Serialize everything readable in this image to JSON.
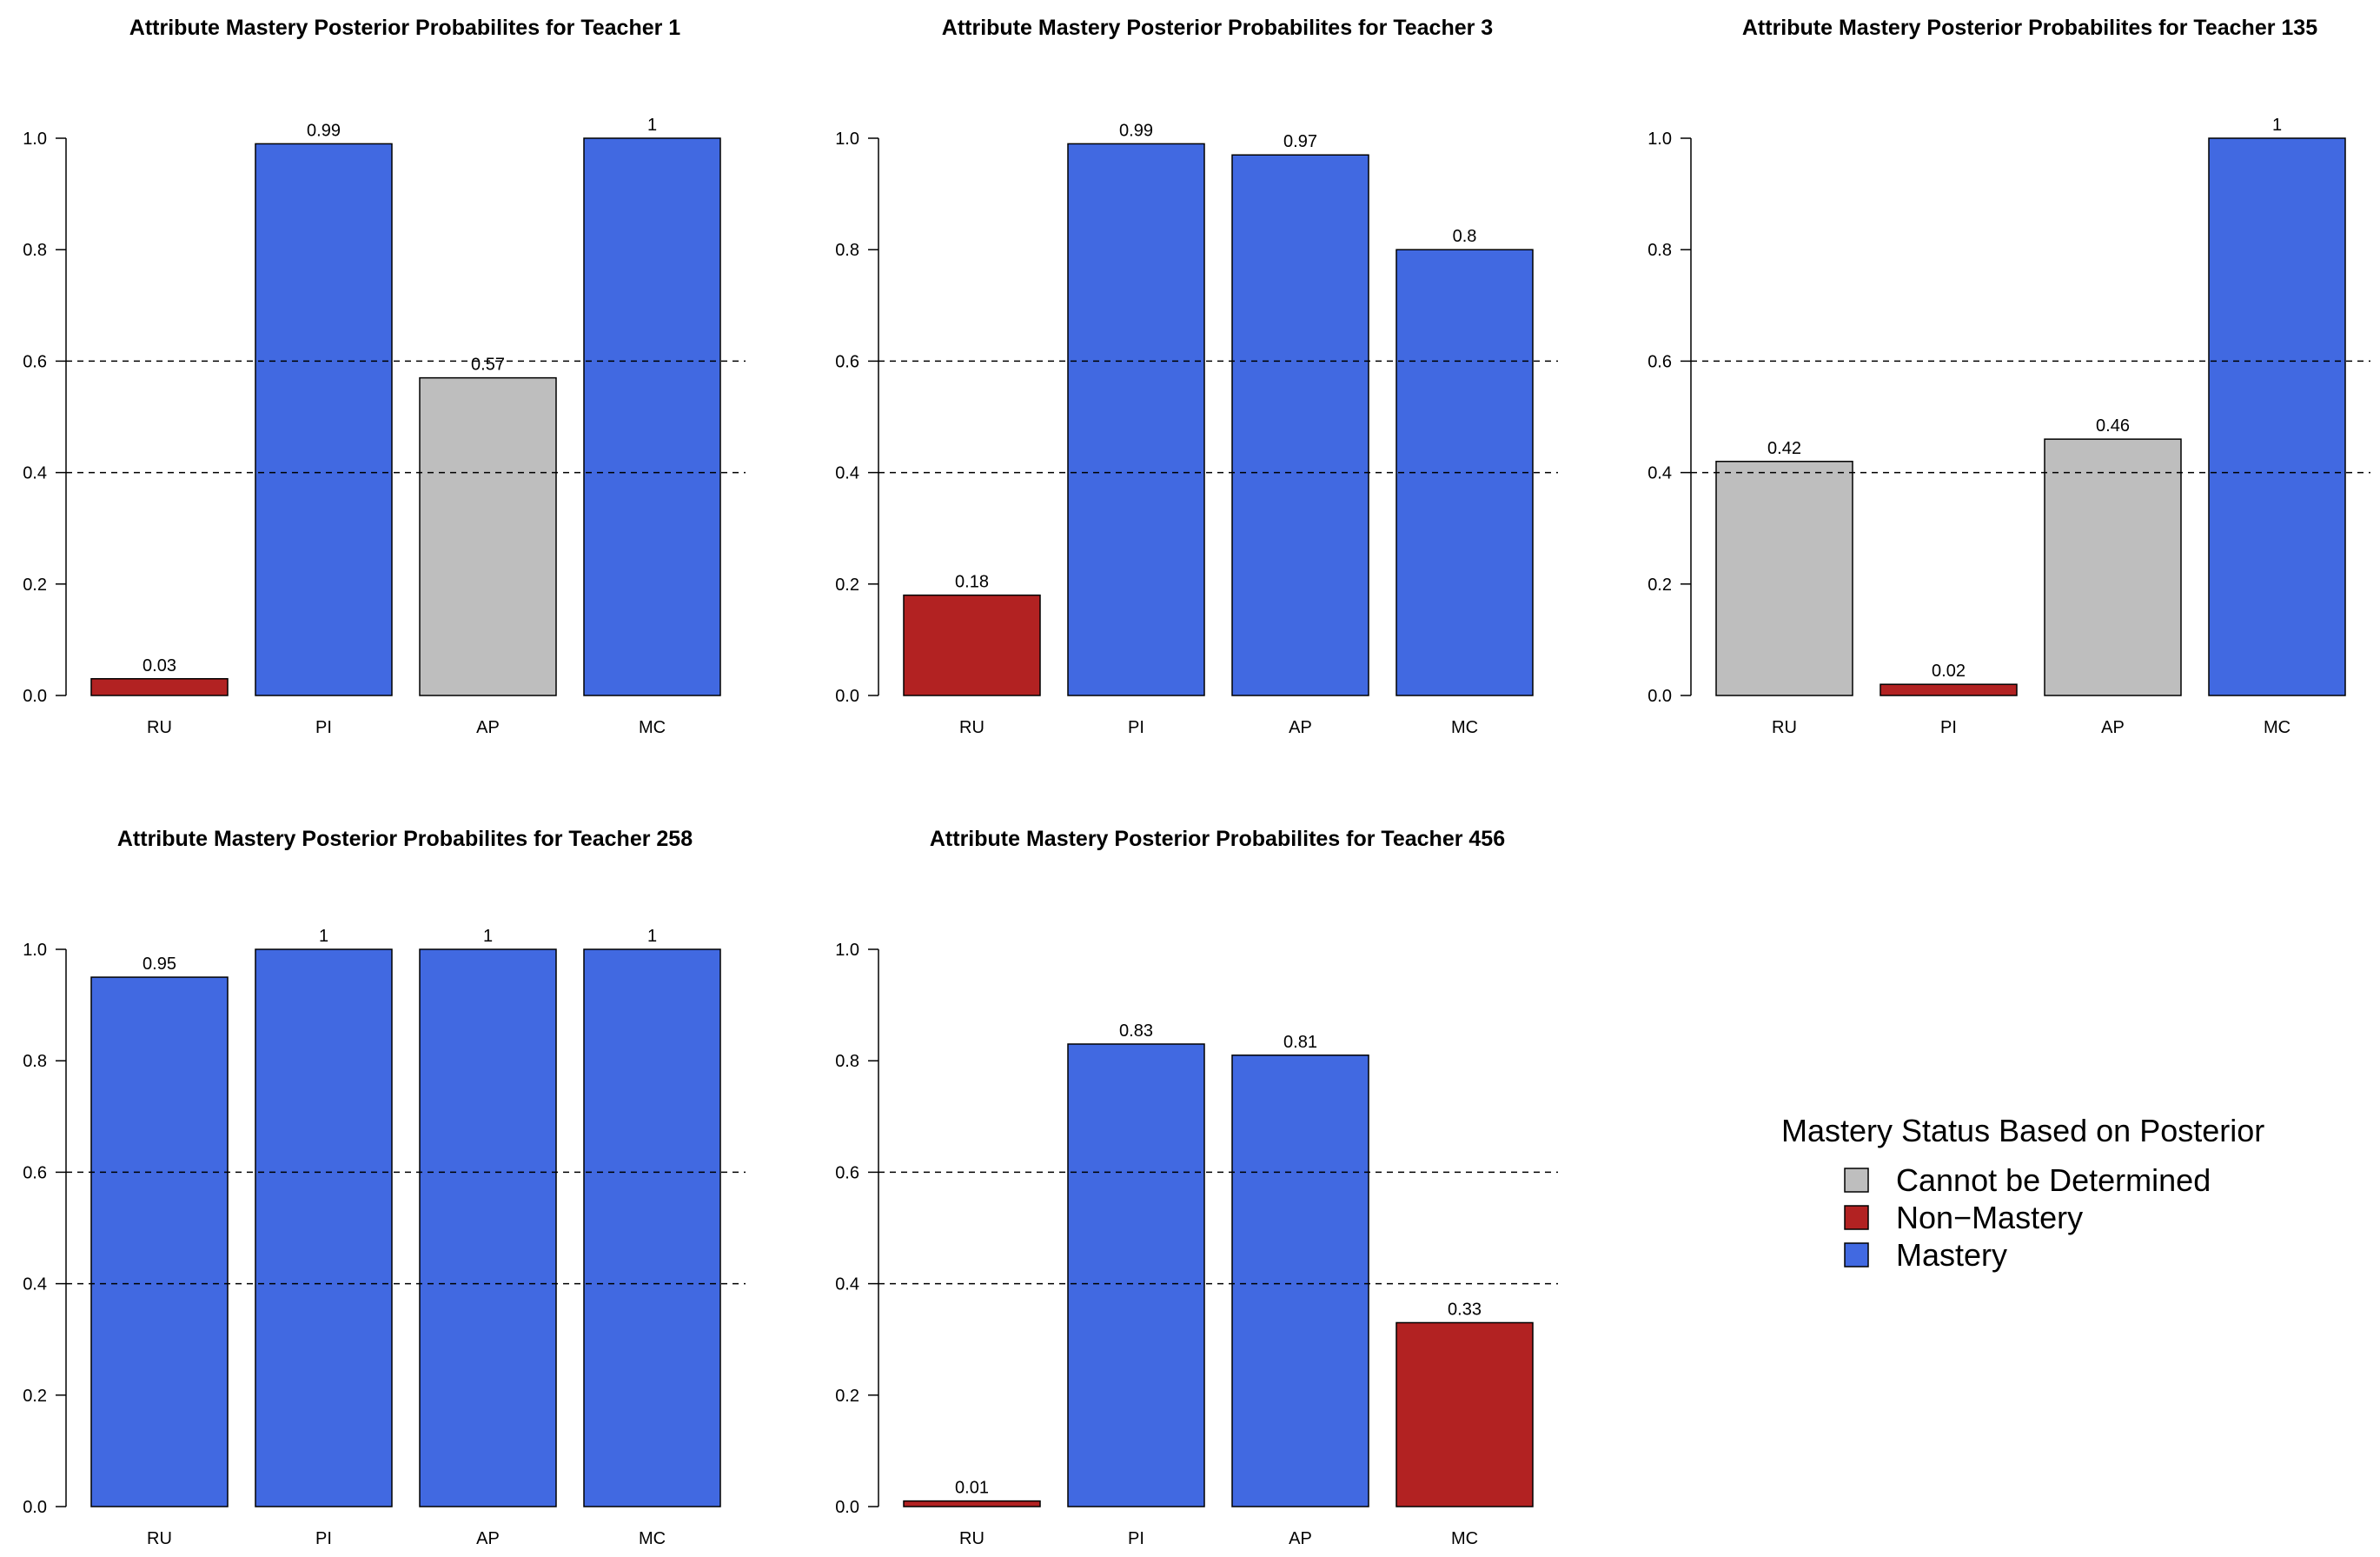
{
  "chart_data": [
    {
      "type": "bar",
      "title": "Attribute Mastery Posterior Probabilites for Teacher 1",
      "categories": [
        "RU",
        "PI",
        "AP",
        "MC"
      ],
      "values": [
        0.03,
        0.99,
        0.57,
        1.0
      ],
      "labels": [
        "0.03",
        "0.99",
        "0.57",
        "1"
      ],
      "status": [
        "Non−Mastery",
        "Mastery",
        "Cannot be Determined",
        "Mastery"
      ],
      "ylim": [
        0,
        1
      ],
      "yticks": [
        "0.0",
        "0.2",
        "0.4",
        "0.6",
        "0.8",
        "1.0"
      ],
      "reference_lines": [
        0.4,
        0.6
      ]
    },
    {
      "type": "bar",
      "title": "Attribute Mastery Posterior Probabilites for Teacher 3",
      "categories": [
        "RU",
        "PI",
        "AP",
        "MC"
      ],
      "values": [
        0.18,
        0.99,
        0.97,
        0.8
      ],
      "labels": [
        "0.18",
        "0.99",
        "0.97",
        "0.8"
      ],
      "status": [
        "Non−Mastery",
        "Mastery",
        "Mastery",
        "Mastery"
      ],
      "ylim": [
        0,
        1
      ],
      "yticks": [
        "0.0",
        "0.2",
        "0.4",
        "0.6",
        "0.8",
        "1.0"
      ],
      "reference_lines": [
        0.4,
        0.6
      ]
    },
    {
      "type": "bar",
      "title": "Attribute Mastery Posterior Probabilites for Teacher 135",
      "categories": [
        "RU",
        "PI",
        "AP",
        "MC"
      ],
      "values": [
        0.42,
        0.02,
        0.46,
        1.0
      ],
      "labels": [
        "0.42",
        "0.02",
        "0.46",
        "1"
      ],
      "status": [
        "Cannot be Determined",
        "Non−Mastery",
        "Cannot be Determined",
        "Mastery"
      ],
      "ylim": [
        0,
        1
      ],
      "yticks": [
        "0.0",
        "0.2",
        "0.4",
        "0.6",
        "0.8",
        "1.0"
      ],
      "reference_lines": [
        0.4,
        0.6
      ]
    },
    {
      "type": "bar",
      "title": "Attribute Mastery Posterior Probabilites for Teacher 258",
      "categories": [
        "RU",
        "PI",
        "AP",
        "MC"
      ],
      "values": [
        0.95,
        1.0,
        1.0,
        1.0
      ],
      "labels": [
        "0.95",
        "1",
        "1",
        "1"
      ],
      "status": [
        "Mastery",
        "Mastery",
        "Mastery",
        "Mastery"
      ],
      "ylim": [
        0,
        1
      ],
      "yticks": [
        "0.0",
        "0.2",
        "0.4",
        "0.6",
        "0.8",
        "1.0"
      ],
      "reference_lines": [
        0.4,
        0.6
      ]
    },
    {
      "type": "bar",
      "title": "Attribute Mastery Posterior Probabilites for Teacher 456",
      "categories": [
        "RU",
        "PI",
        "AP",
        "MC"
      ],
      "values": [
        0.01,
        0.83,
        0.81,
        0.33
      ],
      "labels": [
        "0.01",
        "0.83",
        "0.81",
        "0.33"
      ],
      "status": [
        "Non−Mastery",
        "Mastery",
        "Mastery",
        "Non−Mastery"
      ],
      "ylim": [
        0,
        1
      ],
      "yticks": [
        "0.0",
        "0.2",
        "0.4",
        "0.6",
        "0.8",
        "1.0"
      ],
      "reference_lines": [
        0.4,
        0.6
      ]
    }
  ],
  "legend": {
    "title": "Mastery Status Based on Posterior",
    "placement": "bottom-right",
    "items": [
      {
        "label": "Cannot be Determined",
        "color": "#bebebe"
      },
      {
        "label": "Non−Mastery",
        "color": "#b22222"
      },
      {
        "label": "Mastery",
        "color": "#4169e1"
      }
    ]
  }
}
